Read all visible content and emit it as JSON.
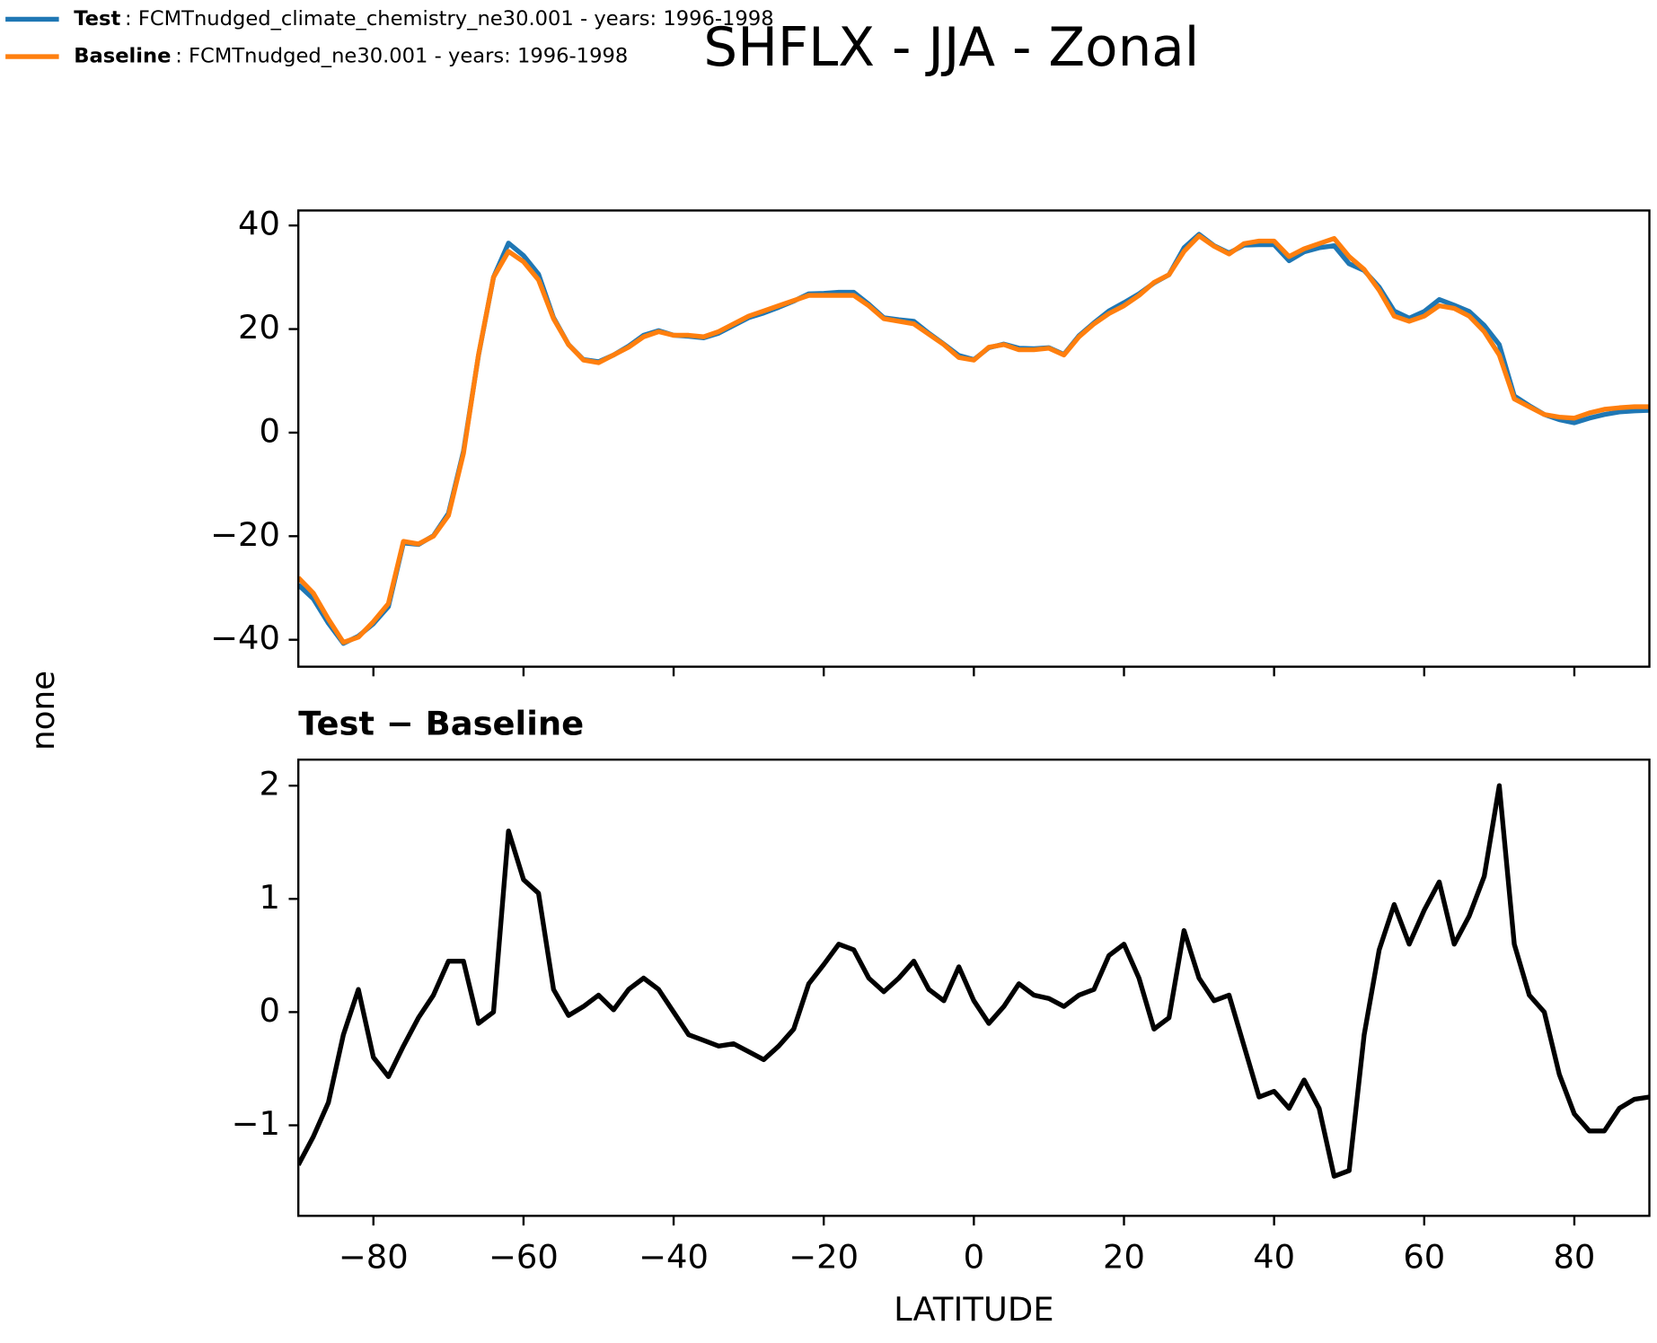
{
  "title": "SHFLX - JJA - Zonal",
  "ylabel": "none",
  "chart_data": [
    {
      "type": "line",
      "x": [
        -90,
        -88,
        -86,
        -84,
        -82,
        -80,
        -78,
        -76,
        -74,
        -72,
        -70,
        -68,
        -66,
        -64,
        -62,
        -60,
        -58,
        -56,
        -54,
        -52,
        -50,
        -48,
        -46,
        -44,
        -42,
        -40,
        -38,
        -36,
        -34,
        -32,
        -30,
        -28,
        -26,
        -24,
        -22,
        -20,
        -18,
        -16,
        -14,
        -12,
        -10,
        -8,
        -6,
        -4,
        -2,
        0,
        2,
        4,
        6,
        8,
        10,
        12,
        14,
        16,
        18,
        20,
        22,
        24,
        26,
        28,
        30,
        32,
        34,
        36,
        38,
        40,
        42,
        44,
        46,
        48,
        50,
        52,
        54,
        56,
        58,
        60,
        62,
        64,
        66,
        68,
        70,
        72,
        74,
        76,
        78,
        80,
        82,
        84,
        86,
        88,
        90
      ],
      "series": [
        {
          "name": "Test",
          "description": ": FCMTnudged_climate_chemistry_ne30.001 - years: 1996-1998",
          "color": "#1f77b4",
          "values": [
            -29.4,
            -32.1,
            -36.8,
            -40.7,
            -39.3,
            -36.9,
            -33.6,
            -21.3,
            -21.6,
            -19.9,
            -15.6,
            -3.6,
            14.9,
            30,
            36.6,
            34.2,
            30.6,
            22.2,
            17,
            14.1,
            13.7,
            15,
            16.7,
            18.8,
            19.7,
            18.8,
            18.6,
            18.3,
            19.2,
            20.7,
            22.2,
            23.1,
            24.2,
            25.4,
            26.8,
            26.9,
            27.1,
            27.1,
            24.8,
            22.2,
            21.8,
            21.5,
            19.2,
            17.1,
            14.9,
            14.1,
            16.4,
            17.1,
            16.3,
            16.2,
            16.4,
            15.1,
            18.7,
            21.2,
            23.5,
            25.1,
            26.8,
            28.9,
            30.5,
            35.7,
            38.3,
            36.1,
            34.7,
            36.2,
            36.3,
            36.3,
            33.2,
            34.9,
            35.7,
            36.1,
            32.6,
            31.3,
            28.1,
            23.5,
            22.1,
            23.4,
            25.7,
            24.6,
            23.4,
            20.7,
            17,
            7.1,
            5.2,
            3.5,
            2.5,
            1.9,
            2.8,
            3.5,
            4,
            4.2,
            4.3
          ]
        },
        {
          "name": "Baseline",
          "description": ": FCMTnudged_ne30.001 - years: 1996-1998",
          "color": "#ff7f0e",
          "values": [
            -28,
            -31,
            -36,
            -40.5,
            -39.5,
            -36.5,
            -33,
            -21,
            -21.5,
            -20,
            -16,
            -4,
            15,
            30,
            35,
            33,
            29.5,
            22,
            17,
            14,
            13.5,
            15,
            16.5,
            18.5,
            19.5,
            18.8,
            18.8,
            18.5,
            19.5,
            21,
            22.5,
            23.5,
            24.5,
            25.5,
            26.5,
            26.5,
            26.5,
            26.5,
            24.5,
            22,
            21.5,
            21,
            19,
            17,
            14.5,
            14,
            16.5,
            17,
            16,
            16,
            16.3,
            15,
            18.5,
            21,
            23,
            24.5,
            26.5,
            29,
            30.5,
            35,
            38,
            36,
            34.5,
            36.5,
            37,
            37,
            34,
            35.5,
            36.5,
            37.5,
            34,
            31.5,
            27.5,
            22.5,
            21.5,
            22.5,
            24.5,
            24,
            22.5,
            19.5,
            15,
            6.5,
            5,
            3.5,
            3,
            2.8,
            3.8,
            4.5,
            4.8,
            5,
            5
          ]
        }
      ],
      "xlim": [
        -90,
        90
      ],
      "xticks": [
        -80,
        -60,
        -40,
        -20,
        0,
        20,
        40,
        60,
        80
      ],
      "ylim": [
        -45.2,
        42.9
      ],
      "yticks": [
        {
          "value": -40,
          "label": "−40"
        },
        {
          "value": -20,
          "label": "−20"
        },
        0,
        20,
        40
      ]
    },
    {
      "type": "line",
      "title": "Test − Baseline",
      "xlabel": "LATITUDE",
      "color": "#000000",
      "x": [
        -90,
        -88,
        -86,
        -84,
        -82,
        -80,
        -78,
        -76,
        -74,
        -72,
        -70,
        -68,
        -66,
        -64,
        -62,
        -60,
        -58,
        -56,
        -54,
        -52,
        -50,
        -48,
        -46,
        -44,
        -42,
        -40,
        -38,
        -36,
        -34,
        -32,
        -30,
        -28,
        -26,
        -24,
        -22,
        -20,
        -18,
        -16,
        -14,
        -12,
        -10,
        -8,
        -6,
        -4,
        -2,
        0,
        2,
        4,
        6,
        8,
        10,
        12,
        14,
        16,
        18,
        20,
        22,
        24,
        26,
        28,
        30,
        32,
        34,
        36,
        38,
        40,
        42,
        44,
        46,
        48,
        50,
        52,
        54,
        56,
        58,
        60,
        62,
        64,
        66,
        68,
        70,
        72,
        74,
        76,
        78,
        80,
        82,
        84,
        86,
        88,
        90
      ],
      "values": [
        -1.35,
        -1.1,
        -0.8,
        -0.2,
        0.2,
        -0.4,
        -0.57,
        -0.3,
        -0.05,
        0.15,
        0.45,
        0.45,
        -0.1,
        0,
        1.6,
        1.17,
        1.05,
        0.2,
        -0.03,
        0.05,
        0.15,
        0.02,
        0.2,
        0.3,
        0.2,
        0,
        -0.2,
        -0.25,
        -0.3,
        -0.28,
        -0.35,
        -0.42,
        -0.3,
        -0.15,
        0.25,
        0.42,
        0.6,
        0.55,
        0.3,
        0.18,
        0.3,
        0.45,
        0.2,
        0.1,
        0.4,
        0.1,
        -0.1,
        0.05,
        0.25,
        0.15,
        0.12,
        0.05,
        0.15,
        0.2,
        0.5,
        0.6,
        0.3,
        -0.15,
        -0.05,
        0.72,
        0.3,
        0.1,
        0.15,
        -0.3,
        -0.75,
        -0.7,
        -0.85,
        -0.6,
        -0.85,
        -1.45,
        -1.4,
        -0.2,
        0.55,
        0.95,
        0.6,
        0.9,
        1.15,
        0.6,
        0.85,
        1.2,
        2,
        0.6,
        0.15,
        0,
        -0.55,
        -0.9,
        -1.05,
        -1.05,
        -0.85,
        -0.77,
        -0.75
      ],
      "xlim": [
        -90,
        90
      ],
      "xticks": [
        {
          "value": -80,
          "label": "−80"
        },
        {
          "value": -60,
          "label": "−60"
        },
        {
          "value": -40,
          "label": "−40"
        },
        {
          "value": -20,
          "label": "−20"
        },
        0,
        20,
        40,
        60,
        80
      ],
      "ylim": [
        -1.8,
        2.23
      ],
      "yticks": [
        {
          "value": -1,
          "label": "−1"
        },
        0,
        1,
        2
      ]
    }
  ]
}
